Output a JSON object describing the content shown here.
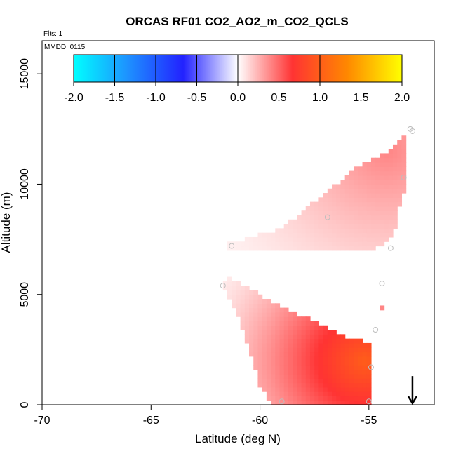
{
  "chart_data": {
    "type": "heatmap",
    "title": "ORCAS RF01 CO2_AO2_m_CO2_QCLS",
    "xlabel": "Latitude (deg N)",
    "ylabel": "Altitude (m)",
    "xlim": [
      -70,
      -52
    ],
    "ylim": [
      0,
      16500
    ],
    "x_ticks": [
      -70,
      -65,
      -60,
      -55
    ],
    "x_tick_labels": [
      "-70",
      "-65",
      "-60",
      "-55"
    ],
    "y_ticks": [
      0,
      5000,
      10000,
      15000
    ],
    "y_tick_labels": [
      "0",
      "5000",
      "10000",
      "15000"
    ],
    "flights_label": "Flts: 1",
    "date_label": "MMDD: 0115",
    "colorbar": {
      "min": -2.0,
      "max": 2.0,
      "tick_values": [
        -2.0,
        -1.5,
        -1.0,
        -0.5,
        0.0,
        0.5,
        1.0,
        1.5,
        2.0
      ],
      "tick_labels": [
        "-2.0",
        "-1.5",
        "-1.0",
        "-0.5",
        "0.0",
        "0.5",
        "1.0",
        "1.5",
        "2.0"
      ],
      "colors": [
        "#00ffff",
        "#1e90ff",
        "#2222ff",
        "#ffffff",
        "#ff3333",
        "#ff8800",
        "#ffff00"
      ]
    },
    "regions": [
      {
        "name": "upper-band",
        "polygon": [
          [
            -61.5,
            7300
          ],
          [
            -59,
            8000
          ],
          [
            -57,
            9600
          ],
          [
            -55.5,
            10800
          ],
          [
            -54,
            11500
          ],
          [
            -53.2,
            12500
          ],
          [
            -53.2,
            10000
          ],
          [
            -53.6,
            9000
          ],
          [
            -53.8,
            8000
          ],
          [
            -54.2,
            7300
          ],
          [
            -55,
            7000
          ],
          [
            -58,
            7000
          ],
          [
            -61.5,
            7000
          ]
        ],
        "value_min": 0.05,
        "value_max": 0.4,
        "core": [
          -54.2,
          11500
        ]
      },
      {
        "name": "lower-band",
        "polygon": [
          [
            -61.5,
            5800
          ],
          [
            -60,
            5000
          ],
          [
            -58,
            4000
          ],
          [
            -56,
            3100
          ],
          [
            -54.8,
            2800
          ],
          [
            -54.8,
            0
          ],
          [
            -59.5,
            0
          ],
          [
            -60,
            900
          ],
          [
            -61.0,
            4000
          ],
          [
            -61.7,
            5300
          ]
        ],
        "value_min": 0.05,
        "value_max": 1.0,
        "core": [
          -55.2,
          2000
        ]
      },
      {
        "name": "small-patch",
        "polygon": [
          [
            -54.5,
            4600
          ],
          [
            -54.2,
            4600
          ],
          [
            -54.2,
            4300
          ],
          [
            -54.5,
            4300
          ]
        ],
        "value_min": 0.4,
        "value_max": 0.4,
        "core": [
          -54.35,
          4450
        ]
      }
    ],
    "sample_points": [
      {
        "lat": -53.1,
        "alt": 12500
      },
      {
        "lat": -53.0,
        "alt": 12400
      },
      {
        "lat": -53.4,
        "alt": 10300
      },
      {
        "lat": -56.9,
        "alt": 8500
      },
      {
        "lat": -54.0,
        "alt": 7100
      },
      {
        "lat": -61.3,
        "alt": 7200
      },
      {
        "lat": -54.4,
        "alt": 5500
      },
      {
        "lat": -61.7,
        "alt": 5400
      },
      {
        "lat": -54.7,
        "alt": 3400
      },
      {
        "lat": -54.9,
        "alt": 1700
      },
      {
        "lat": -59.0,
        "alt": 150
      },
      {
        "lat": -55.0,
        "alt": 150
      }
    ],
    "arrow": {
      "lat": -53.0,
      "direction": "down"
    }
  }
}
